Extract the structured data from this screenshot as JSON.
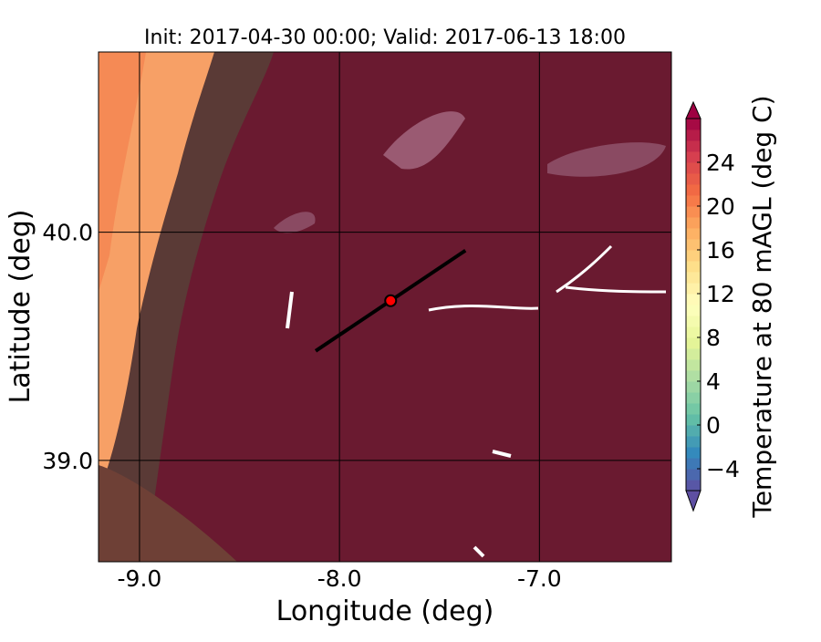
{
  "chart_data": {
    "type": "map",
    "title": "Init: 2017-04-30 00:00; Valid: 2017-06-13 18:00",
    "x_label": "Longitude (deg)",
    "y_label": "Latitude (deg)",
    "xlim": [
      -9.205,
      -6.34
    ],
    "ylim": [
      38.556,
      40.79
    ],
    "xticks": [
      {
        "value": -9,
        "label": "-9.0"
      },
      {
        "value": -8,
        "label": "-8.0"
      },
      {
        "value": -7,
        "label": "-7.0"
      }
    ],
    "yticks": [
      {
        "value": 39,
        "label": "39.0"
      },
      {
        "value": 40,
        "label": "40.0"
      }
    ],
    "transect": {
      "x": [
        -8.119,
        -7.37
      ],
      "y": [
        39.48,
        39.92
      ],
      "color": "#000000"
    },
    "marker": {
      "x": -7.744,
      "y": 39.7,
      "color": "#ff0000"
    },
    "colorbar": {
      "label": "Temperature at 80 mAGL (deg C)",
      "lim": [
        -6,
        28
      ],
      "ticks": [
        {
          "value": -4,
          "label": "−4"
        },
        0,
        4,
        8,
        12,
        16,
        20,
        24
      ],
      "colormap": [
        "#5e4fa2",
        "#3288bd",
        "#66c2a5",
        "#abdda4",
        "#e6f598",
        "#ffffbf",
        "#fee08b",
        "#fdae61",
        "#f46d43",
        "#d53e4f",
        "#9e0142"
      ]
    }
  }
}
